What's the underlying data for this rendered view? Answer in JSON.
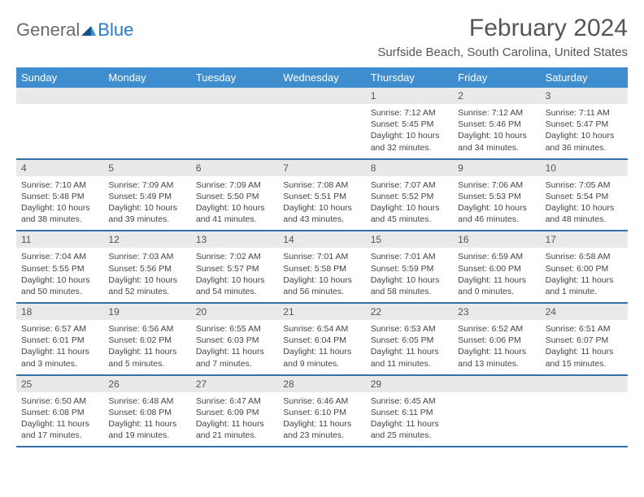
{
  "brand": {
    "part1": "General",
    "part2": "Blue"
  },
  "title": "February 2024",
  "location": "Surfside Beach, South Carolina, United States",
  "colors": {
    "header_bg": "#3e8ecf",
    "border": "#346fa5",
    "daynum_bg": "#e9e9e9",
    "text": "#444444",
    "title_text": "#555555",
    "logo_gray": "#6b6b6b",
    "logo_blue": "#2a7bc4",
    "background": "#ffffff"
  },
  "typography": {
    "title_fontsize": 30,
    "location_fontsize": 15,
    "dow_fontsize": 13,
    "daynum_fontsize": 12,
    "body_fontsize": 10.5
  },
  "days_of_week": [
    "Sunday",
    "Monday",
    "Tuesday",
    "Wednesday",
    "Thursday",
    "Friday",
    "Saturday"
  ],
  "weeks": [
    {
      "nums": [
        "",
        "",
        "",
        "",
        "1",
        "2",
        "3"
      ],
      "cells": [
        "",
        "",
        "",
        "",
        "Sunrise: 7:12 AM\nSunset: 5:45 PM\nDaylight: 10 hours and 32 minutes.",
        "Sunrise: 7:12 AM\nSunset: 5:46 PM\nDaylight: 10 hours and 34 minutes.",
        "Sunrise: 7:11 AM\nSunset: 5:47 PM\nDaylight: 10 hours and 36 minutes."
      ]
    },
    {
      "nums": [
        "4",
        "5",
        "6",
        "7",
        "8",
        "9",
        "10"
      ],
      "cells": [
        "Sunrise: 7:10 AM\nSunset: 5:48 PM\nDaylight: 10 hours and 38 minutes.",
        "Sunrise: 7:09 AM\nSunset: 5:49 PM\nDaylight: 10 hours and 39 minutes.",
        "Sunrise: 7:09 AM\nSunset: 5:50 PM\nDaylight: 10 hours and 41 minutes.",
        "Sunrise: 7:08 AM\nSunset: 5:51 PM\nDaylight: 10 hours and 43 minutes.",
        "Sunrise: 7:07 AM\nSunset: 5:52 PM\nDaylight: 10 hours and 45 minutes.",
        "Sunrise: 7:06 AM\nSunset: 5:53 PM\nDaylight: 10 hours and 46 minutes.",
        "Sunrise: 7:05 AM\nSunset: 5:54 PM\nDaylight: 10 hours and 48 minutes."
      ]
    },
    {
      "nums": [
        "11",
        "12",
        "13",
        "14",
        "15",
        "16",
        "17"
      ],
      "cells": [
        "Sunrise: 7:04 AM\nSunset: 5:55 PM\nDaylight: 10 hours and 50 minutes.",
        "Sunrise: 7:03 AM\nSunset: 5:56 PM\nDaylight: 10 hours and 52 minutes.",
        "Sunrise: 7:02 AM\nSunset: 5:57 PM\nDaylight: 10 hours and 54 minutes.",
        "Sunrise: 7:01 AM\nSunset: 5:58 PM\nDaylight: 10 hours and 56 minutes.",
        "Sunrise: 7:01 AM\nSunset: 5:59 PM\nDaylight: 10 hours and 58 minutes.",
        "Sunrise: 6:59 AM\nSunset: 6:00 PM\nDaylight: 11 hours and 0 minutes.",
        "Sunrise: 6:58 AM\nSunset: 6:00 PM\nDaylight: 11 hours and 1 minute."
      ]
    },
    {
      "nums": [
        "18",
        "19",
        "20",
        "21",
        "22",
        "23",
        "24"
      ],
      "cells": [
        "Sunrise: 6:57 AM\nSunset: 6:01 PM\nDaylight: 11 hours and 3 minutes.",
        "Sunrise: 6:56 AM\nSunset: 6:02 PM\nDaylight: 11 hours and 5 minutes.",
        "Sunrise: 6:55 AM\nSunset: 6:03 PM\nDaylight: 11 hours and 7 minutes.",
        "Sunrise: 6:54 AM\nSunset: 6:04 PM\nDaylight: 11 hours and 9 minutes.",
        "Sunrise: 6:53 AM\nSunset: 6:05 PM\nDaylight: 11 hours and 11 minutes.",
        "Sunrise: 6:52 AM\nSunset: 6:06 PM\nDaylight: 11 hours and 13 minutes.",
        "Sunrise: 6:51 AM\nSunset: 6:07 PM\nDaylight: 11 hours and 15 minutes."
      ]
    },
    {
      "nums": [
        "25",
        "26",
        "27",
        "28",
        "29",
        "",
        ""
      ],
      "cells": [
        "Sunrise: 6:50 AM\nSunset: 6:08 PM\nDaylight: 11 hours and 17 minutes.",
        "Sunrise: 6:48 AM\nSunset: 6:08 PM\nDaylight: 11 hours and 19 minutes.",
        "Sunrise: 6:47 AM\nSunset: 6:09 PM\nDaylight: 11 hours and 21 minutes.",
        "Sunrise: 6:46 AM\nSunset: 6:10 PM\nDaylight: 11 hours and 23 minutes.",
        "Sunrise: 6:45 AM\nSunset: 6:11 PM\nDaylight: 11 hours and 25 minutes.",
        "",
        ""
      ]
    }
  ]
}
